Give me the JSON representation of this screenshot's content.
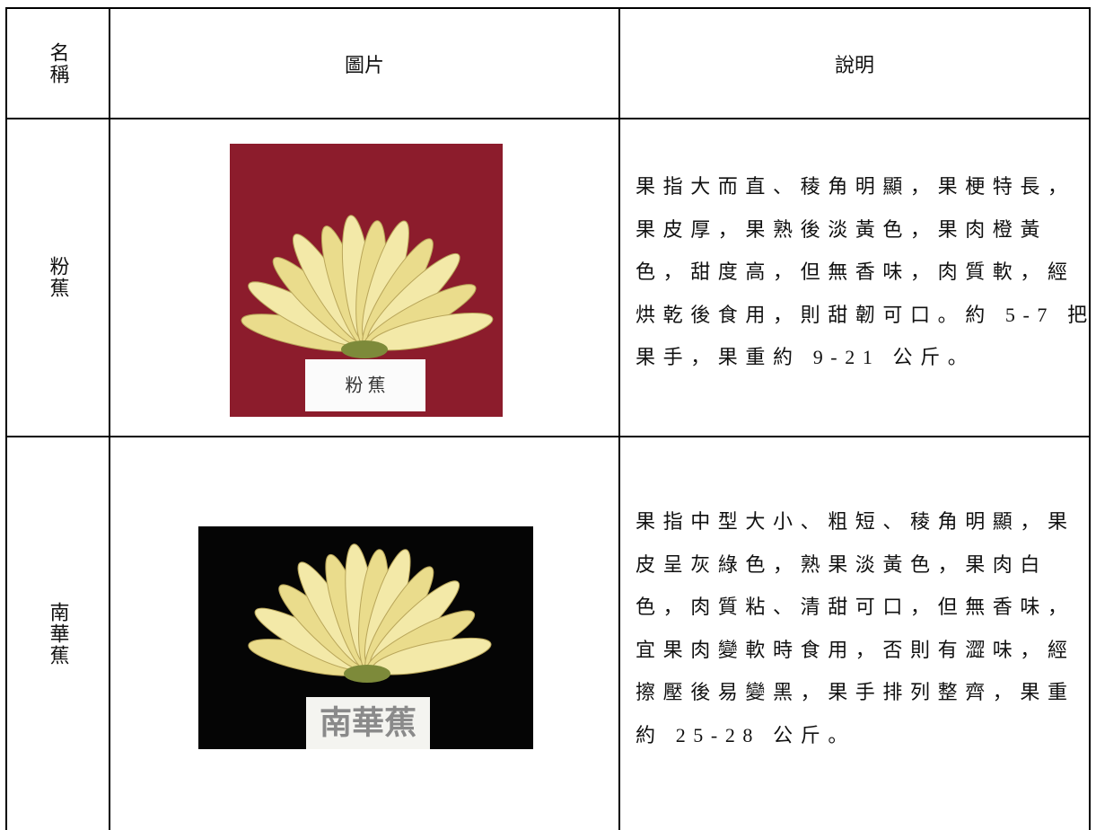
{
  "table": {
    "header": [
      "名稱",
      "圖片",
      "說明"
    ],
    "rows": [
      {
        "name": "粉蕉",
        "image_label": "粉 蕉",
        "description": [
          "果指大而直、稜角明顯，果梗特長，",
          "果皮厚，果熟後淡黃色，果肉橙黃",
          "色，甜度高，但無香味，肉質軟，經",
          "烘乾後食用，則甜韌可口。約 5-7 把",
          "果手，果重約 9-21 公斤。"
        ]
      },
      {
        "name": "南華蕉",
        "image_label": "南華蕉",
        "description": [
          "果指中型大小、粗短、稜角明顯，果",
          "皮呈灰綠色，熟果淡黃色，果肉白",
          "色，肉質粘、清甜可口，但無香味，",
          "宜果肉變軟時食用，否則有澀味，經",
          "擦壓後易變黑，果手排列整齊，果重",
          "約 25-28 公斤。"
        ]
      }
    ]
  }
}
